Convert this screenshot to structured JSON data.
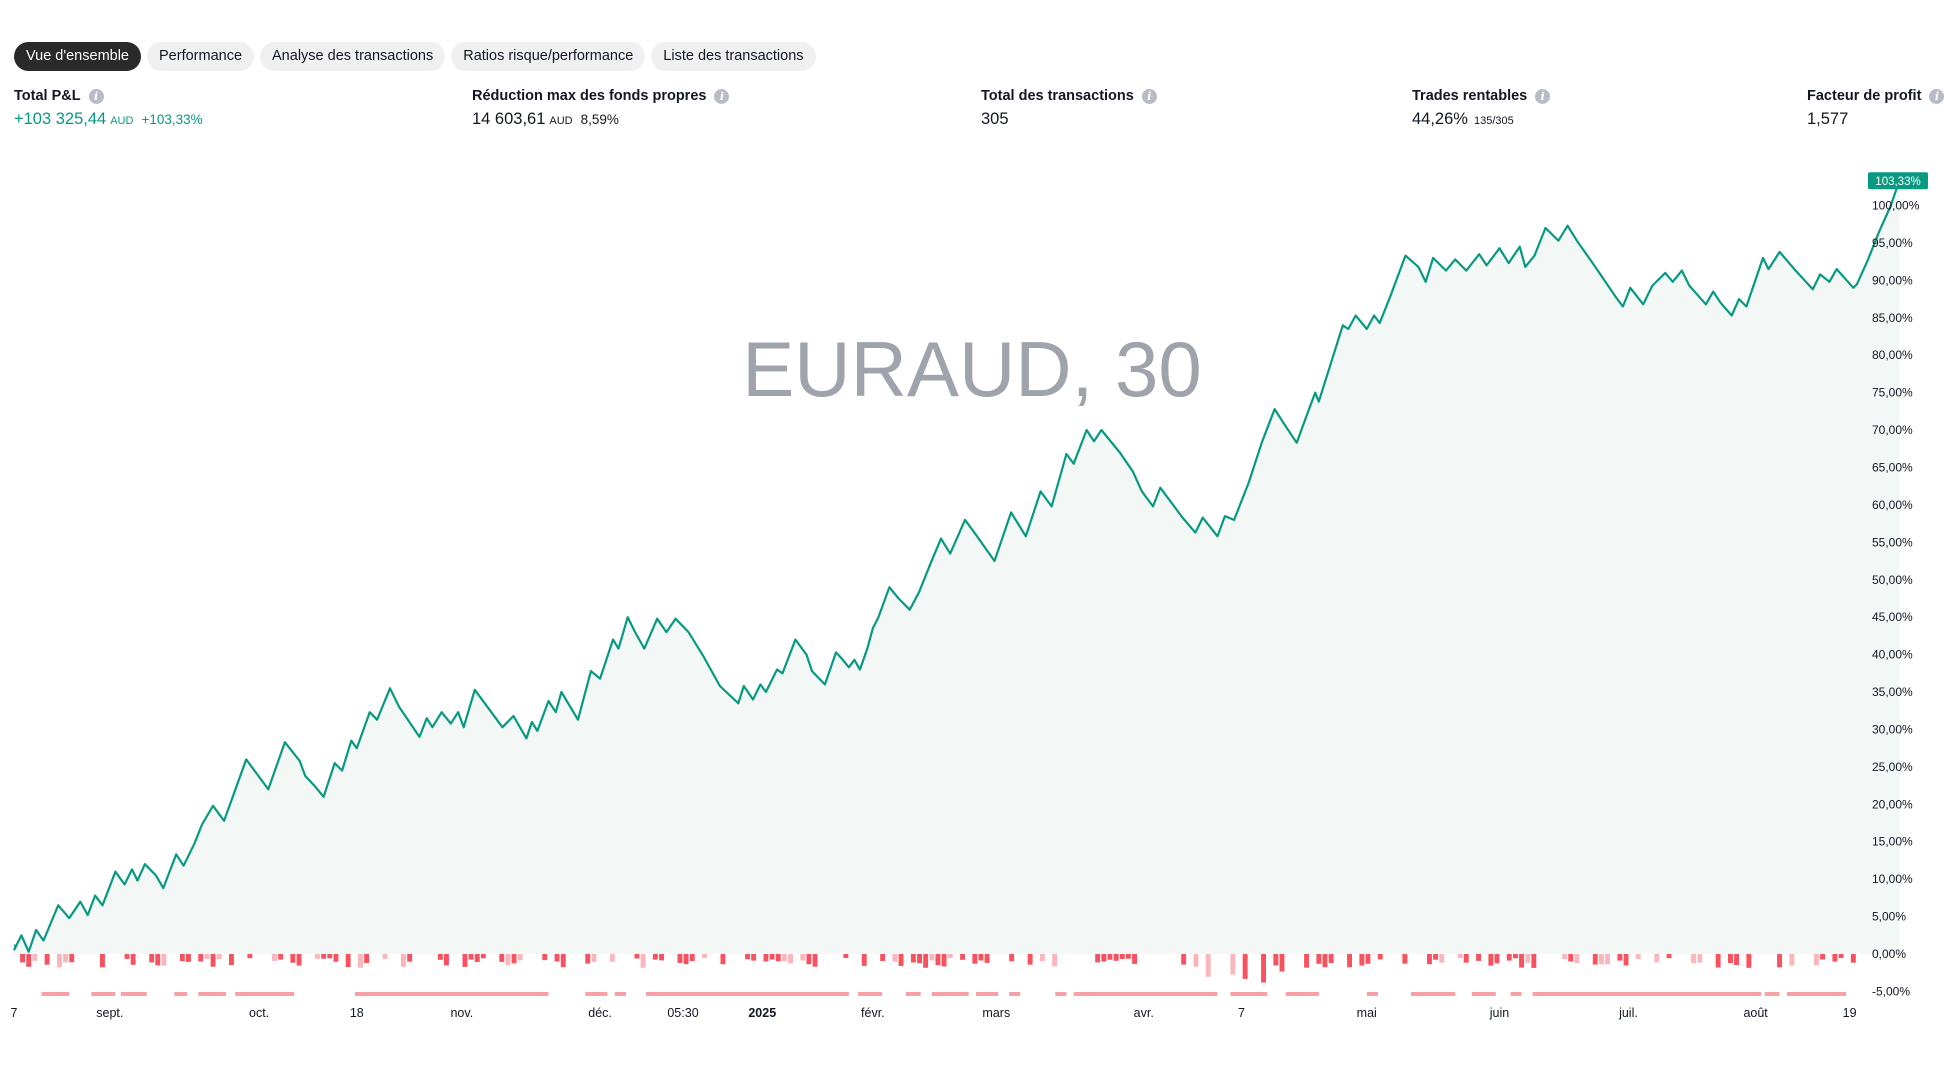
{
  "tabs": {
    "overview": "Vue d'ensemble",
    "performance": "Performance",
    "trades_analysis": "Analyse des transactions",
    "risk_ratios": "Ratios risque/performance",
    "trades_list": "Liste des transactions"
  },
  "stats": {
    "total_pnl": {
      "label": "Total P&L",
      "value": "+103 325,44",
      "unit": "AUD",
      "percent": "+103,33%"
    },
    "max_drawdown": {
      "label": "Réduction max des fonds propres",
      "value": "14 603,61",
      "unit": "AUD",
      "percent": "8,59%"
    },
    "total_trades": {
      "label": "Total des transactions",
      "value": "305"
    },
    "profitable": {
      "label": "Trades rentables",
      "value": "44,26%",
      "ratio": "135/305"
    },
    "profit_factor": {
      "label": "Facteur de profit",
      "value": "1,577"
    }
  },
  "icons": {
    "info": "info-icon"
  },
  "colors": {
    "line": "#089981",
    "area": "#f3f8f6",
    "positive_bar": "#22ab94",
    "positive_bar_light": "#a6dccf",
    "negative_bar": "#f7525f",
    "negative_bar_light": "#f9b6bc",
    "drawdown_strip": "#f7a1a6",
    "watermark": "#9fa3ab"
  },
  "chart_data": {
    "type": "line",
    "watermark": "EURAUD, 30",
    "last_value_label": "103,33%",
    "y_axis": {
      "min": -5,
      "max": 100,
      "step": 5,
      "tick_labels": [
        "-5,00%",
        "0,00%",
        "5,00%",
        "10,00%",
        "15,00%",
        "20,00%",
        "25,00%",
        "30,00%",
        "35,00%",
        "40,00%",
        "45,00%",
        "50,00%",
        "55,00%",
        "60,00%",
        "65,00%",
        "70,00%",
        "75,00%",
        "80,00%",
        "85,00%",
        "90,00%",
        "95,00%",
        "100,00%"
      ]
    },
    "x_axis": {
      "labels": [
        {
          "text": "7",
          "t": 0,
          "bold": false
        },
        {
          "text": "sept.",
          "t": 0.052,
          "bold": false
        },
        {
          "text": "oct.",
          "t": 0.133,
          "bold": false
        },
        {
          "text": "18",
          "t": 0.186,
          "bold": false
        },
        {
          "text": "nov.",
          "t": 0.243,
          "bold": false
        },
        {
          "text": "déc.",
          "t": 0.318,
          "bold": false
        },
        {
          "text": "05:30",
          "t": 0.363,
          "bold": false
        },
        {
          "text": "2025",
          "t": 0.406,
          "bold": true
        },
        {
          "text": "févr.",
          "t": 0.466,
          "bold": false
        },
        {
          "text": "mars",
          "t": 0.533,
          "bold": false
        },
        {
          "text": "avr.",
          "t": 0.613,
          "bold": false
        },
        {
          "text": "7",
          "t": 0.666,
          "bold": false
        },
        {
          "text": "mai",
          "t": 0.734,
          "bold": false
        },
        {
          "text": "juin",
          "t": 0.806,
          "bold": false
        },
        {
          "text": "juil.",
          "t": 0.876,
          "bold": false
        },
        {
          "text": "août",
          "t": 0.945,
          "bold": false
        },
        {
          "text": "19",
          "t": 0.996,
          "bold": false
        }
      ]
    },
    "series": [
      {
        "points": [
          [
            0,
            0.5
          ],
          [
            0.004,
            2.5
          ],
          [
            0.008,
            0.3
          ],
          [
            0.012,
            3.2
          ],
          [
            0.016,
            1.8
          ],
          [
            0.024,
            6.5
          ],
          [
            0.03,
            4.8
          ],
          [
            0.036,
            7.0
          ],
          [
            0.04,
            5.2
          ],
          [
            0.044,
            7.8
          ],
          [
            0.048,
            6.5
          ],
          [
            0.055,
            11.0
          ],
          [
            0.06,
            9.3
          ],
          [
            0.064,
            11.3
          ],
          [
            0.067,
            9.8
          ],
          [
            0.071,
            12.0
          ],
          [
            0.077,
            10.5
          ],
          [
            0.081,
            8.8
          ],
          [
            0.088,
            13.3
          ],
          [
            0.092,
            11.8
          ],
          [
            0.098,
            14.8
          ],
          [
            0.102,
            17.3
          ],
          [
            0.108,
            19.8
          ],
          [
            0.114,
            17.8
          ],
          [
            0.126,
            26.0
          ],
          [
            0.138,
            22.0
          ],
          [
            0.147,
            28.3
          ],
          [
            0.155,
            25.8
          ],
          [
            0.158,
            23.8
          ],
          [
            0.163,
            22.5
          ],
          [
            0.168,
            21.0
          ],
          [
            0.174,
            25.5
          ],
          [
            0.178,
            24.5
          ],
          [
            0.183,
            28.5
          ],
          [
            0.186,
            27.5
          ],
          [
            0.193,
            32.3
          ],
          [
            0.197,
            31.3
          ],
          [
            0.204,
            35.5
          ],
          [
            0.209,
            33.0
          ],
          [
            0.22,
            29.0
          ],
          [
            0.224,
            31.5
          ],
          [
            0.227,
            30.3
          ],
          [
            0.232,
            32.3
          ],
          [
            0.237,
            30.8
          ],
          [
            0.241,
            32.3
          ],
          [
            0.244,
            30.3
          ],
          [
            0.25,
            35.3
          ],
          [
            0.265,
            30.3
          ],
          [
            0.271,
            31.8
          ],
          [
            0.278,
            28.8
          ],
          [
            0.281,
            31.0
          ],
          [
            0.284,
            29.8
          ],
          [
            0.29,
            33.8
          ],
          [
            0.294,
            32.3
          ],
          [
            0.297,
            35.0
          ],
          [
            0.306,
            31.3
          ],
          [
            0.313,
            37.8
          ],
          [
            0.318,
            36.8
          ],
          [
            0.325,
            42.0
          ],
          [
            0.328,
            40.8
          ],
          [
            0.333,
            45.0
          ],
          [
            0.337,
            43.0
          ],
          [
            0.342,
            40.8
          ],
          [
            0.349,
            44.8
          ],
          [
            0.354,
            43.0
          ],
          [
            0.359,
            44.8
          ],
          [
            0.366,
            43.0
          ],
          [
            0.374,
            39.8
          ],
          [
            0.383,
            35.8
          ],
          [
            0.393,
            33.5
          ],
          [
            0.396,
            35.8
          ],
          [
            0.401,
            34.0
          ],
          [
            0.405,
            36.0
          ],
          [
            0.408,
            35.0
          ],
          [
            0.414,
            38.0
          ],
          [
            0.417,
            37.5
          ],
          [
            0.424,
            42.0
          ],
          [
            0.43,
            40.0
          ],
          [
            0.433,
            37.8
          ],
          [
            0.44,
            36.0
          ],
          [
            0.446,
            40.3
          ],
          [
            0.449,
            39.5
          ],
          [
            0.453,
            38.3
          ],
          [
            0.456,
            39.3
          ],
          [
            0.459,
            38.0
          ],
          [
            0.463,
            40.8
          ],
          [
            0.466,
            43.5
          ],
          [
            0.469,
            45.0
          ],
          [
            0.475,
            49.0
          ],
          [
            0.48,
            47.5
          ],
          [
            0.486,
            46.0
          ],
          [
            0.491,
            48.3
          ],
          [
            0.497,
            52.0
          ],
          [
            0.503,
            55.5
          ],
          [
            0.508,
            53.5
          ],
          [
            0.516,
            58.0
          ],
          [
            0.522,
            56.0
          ],
          [
            0.532,
            52.5
          ],
          [
            0.541,
            59.0
          ],
          [
            0.549,
            55.8
          ],
          [
            0.557,
            61.8
          ],
          [
            0.563,
            59.8
          ],
          [
            0.571,
            66.8
          ],
          [
            0.575,
            65.5
          ],
          [
            0.582,
            70.0
          ],
          [
            0.586,
            68.5
          ],
          [
            0.59,
            70.0
          ],
          [
            0.6,
            67.0
          ],
          [
            0.607,
            64.5
          ],
          [
            0.612,
            61.8
          ],
          [
            0.618,
            59.8
          ],
          [
            0.622,
            62.3
          ],
          [
            0.634,
            58.3
          ],
          [
            0.641,
            56.3
          ],
          [
            0.645,
            58.3
          ],
          [
            0.653,
            55.8
          ],
          [
            0.657,
            58.5
          ],
          [
            0.662,
            58.0
          ],
          [
            0.67,
            63.0
          ],
          [
            0.677,
            68.3
          ],
          [
            0.684,
            72.8
          ],
          [
            0.69,
            70.5
          ],
          [
            0.696,
            68.3
          ],
          [
            0.703,
            73.0
          ],
          [
            0.706,
            75.0
          ],
          [
            0.708,
            73.8
          ],
          [
            0.714,
            78.5
          ],
          [
            0.721,
            84.0
          ],
          [
            0.724,
            83.5
          ],
          [
            0.728,
            85.3
          ],
          [
            0.734,
            83.5
          ],
          [
            0.738,
            85.3
          ],
          [
            0.741,
            84.3
          ],
          [
            0.747,
            88.0
          ],
          [
            0.755,
            93.3
          ],
          [
            0.762,
            91.8
          ],
          [
            0.766,
            89.8
          ],
          [
            0.77,
            93.0
          ],
          [
            0.777,
            91.3
          ],
          [
            0.782,
            92.8
          ],
          [
            0.788,
            91.3
          ],
          [
            0.795,
            93.5
          ],
          [
            0.799,
            92.0
          ],
          [
            0.806,
            94.3
          ],
          [
            0.811,
            92.3
          ],
          [
            0.817,
            94.5
          ],
          [
            0.82,
            91.8
          ],
          [
            0.825,
            93.3
          ],
          [
            0.831,
            97.0
          ],
          [
            0.838,
            95.3
          ],
          [
            0.843,
            97.3
          ],
          [
            0.848,
            95.3
          ],
          [
            0.856,
            92.5
          ],
          [
            0.863,
            90.0
          ],
          [
            0.869,
            87.8
          ],
          [
            0.873,
            86.5
          ],
          [
            0.877,
            89.0
          ],
          [
            0.884,
            86.8
          ],
          [
            0.889,
            89.3
          ],
          [
            0.896,
            91.0
          ],
          [
            0.9,
            89.8
          ],
          [
            0.905,
            91.3
          ],
          [
            0.909,
            89.3
          ],
          [
            0.918,
            86.8
          ],
          [
            0.922,
            88.5
          ],
          [
            0.926,
            87.0
          ],
          [
            0.932,
            85.3
          ],
          [
            0.936,
            87.5
          ],
          [
            0.94,
            86.5
          ],
          [
            0.949,
            93.0
          ],
          [
            0.952,
            91.5
          ],
          [
            0.958,
            93.8
          ],
          [
            0.966,
            91.5
          ],
          [
            0.976,
            88.8
          ],
          [
            0.98,
            90.8
          ],
          [
            0.985,
            89.8
          ],
          [
            0.989,
            91.5
          ],
          [
            0.998,
            89.0
          ],
          [
            1.0,
            89.5
          ],
          [
            1.006,
            92.8
          ],
          [
            1.012,
            96.5
          ],
          [
            1.018,
            99.8
          ],
          [
            1.023,
            103.3
          ]
        ]
      }
    ]
  }
}
